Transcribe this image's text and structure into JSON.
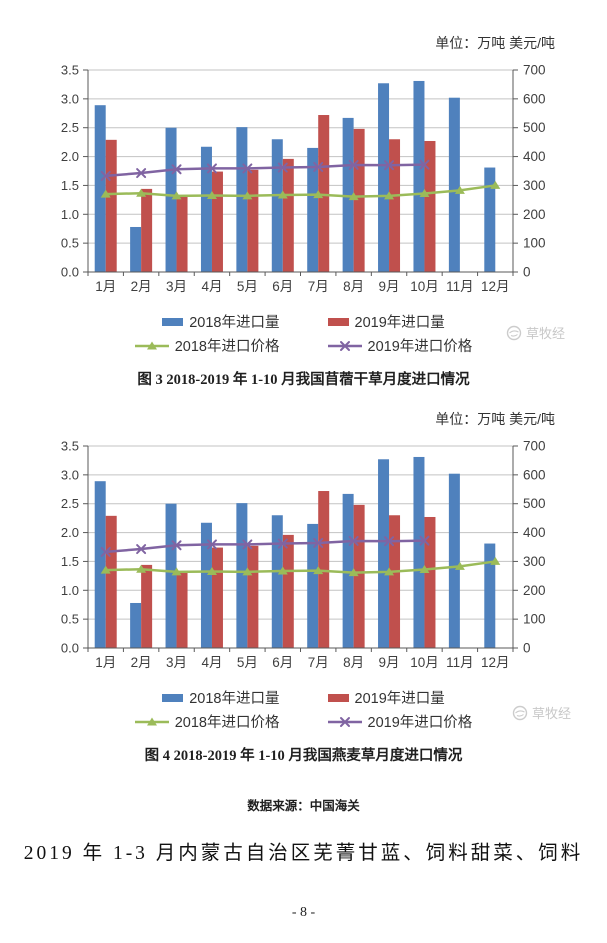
{
  "page": {
    "watermark_text": "草牧经",
    "data_source": "数据来源：中国海关",
    "paragraph": "2019 年 1-3 月内蒙古自治区芜菁甘蓝、饲料甜菜、饲料",
    "page_number": "- 8 -"
  },
  "chart_data": [
    {
      "type": "bar",
      "combo": "bar+line dual-axis",
      "unit_label": "单位：万吨 美元/吨",
      "caption": "图 3  2018-2019 年 1-10 月我国苜蓿干草月度进口情况",
      "categories": [
        "1月",
        "2月",
        "3月",
        "4月",
        "5月",
        "6月",
        "7月",
        "8月",
        "9月",
        "10月",
        "11月",
        "12月"
      ],
      "left_axis": {
        "label": "万吨",
        "min": 0,
        "max": 3.5,
        "step": 0.5,
        "decimals": 1
      },
      "right_axis": {
        "label": "美元/吨",
        "min": 0,
        "max": 700,
        "step": 100,
        "decimals": 0
      },
      "grid": true,
      "legend_position": "bottom",
      "series": [
        {
          "name": "2018年进口量",
          "type": "bar",
          "axis": "left",
          "color": "#4F81BD",
          "values": [
            2.89,
            0.78,
            2.5,
            2.17,
            2.51,
            2.3,
            2.15,
            2.67,
            3.27,
            3.31,
            3.02,
            1.81
          ]
        },
        {
          "name": "2019年进口量",
          "type": "bar",
          "axis": "left",
          "color": "#C0504D",
          "values": [
            2.29,
            1.44,
            1.3,
            1.74,
            1.77,
            1.96,
            2.72,
            2.48,
            2.3,
            2.27,
            null,
            null
          ]
        },
        {
          "name": "2018年进口价格",
          "type": "line",
          "marker": "triangle",
          "axis": "right",
          "color": "#9BBB59",
          "values": [
            270,
            273,
            264,
            265,
            264,
            267,
            268,
            261,
            264,
            272,
            283,
            300
          ]
        },
        {
          "name": "2019年进口价格",
          "type": "line",
          "marker": "x",
          "axis": "right",
          "color": "#8064A2",
          "values": [
            333,
            343,
            356,
            359,
            359,
            362,
            364,
            371,
            370,
            372,
            null,
            null
          ]
        }
      ]
    },
    {
      "type": "bar",
      "combo": "bar+line dual-axis",
      "unit_label": "单位：万吨 美元/吨",
      "caption": "图 4  2018-2019 年 1-10 月我国燕麦草月度进口情况",
      "categories": [
        "1月",
        "2月",
        "3月",
        "4月",
        "5月",
        "6月",
        "7月",
        "8月",
        "9月",
        "10月",
        "11月",
        "12月"
      ],
      "left_axis": {
        "label": "万吨",
        "min": 0,
        "max": 3.5,
        "step": 0.5,
        "decimals": 1
      },
      "right_axis": {
        "label": "美元/吨",
        "min": 0,
        "max": 700,
        "step": 100,
        "decimals": 0
      },
      "grid": true,
      "legend_position": "bottom",
      "series": [
        {
          "name": "2018年进口量",
          "type": "bar",
          "axis": "left",
          "color": "#4F81BD",
          "values": [
            2.89,
            0.78,
            2.5,
            2.17,
            2.51,
            2.3,
            2.15,
            2.67,
            3.27,
            3.31,
            3.02,
            1.81
          ]
        },
        {
          "name": "2019年进口量",
          "type": "bar",
          "axis": "left",
          "color": "#C0504D",
          "values": [
            2.29,
            1.44,
            1.3,
            1.74,
            1.77,
            1.96,
            2.72,
            2.48,
            2.3,
            2.27,
            null,
            null
          ]
        },
        {
          "name": "2018年进口价格",
          "type": "line",
          "marker": "triangle",
          "axis": "right",
          "color": "#9BBB59",
          "values": [
            270,
            273,
            264,
            265,
            264,
            267,
            268,
            261,
            264,
            272,
            283,
            300
          ]
        },
        {
          "name": "2019年进口价格",
          "type": "line",
          "marker": "x",
          "axis": "right",
          "color": "#8064A2",
          "values": [
            333,
            343,
            356,
            359,
            359,
            362,
            364,
            371,
            370,
            372,
            null,
            null
          ]
        }
      ]
    }
  ]
}
